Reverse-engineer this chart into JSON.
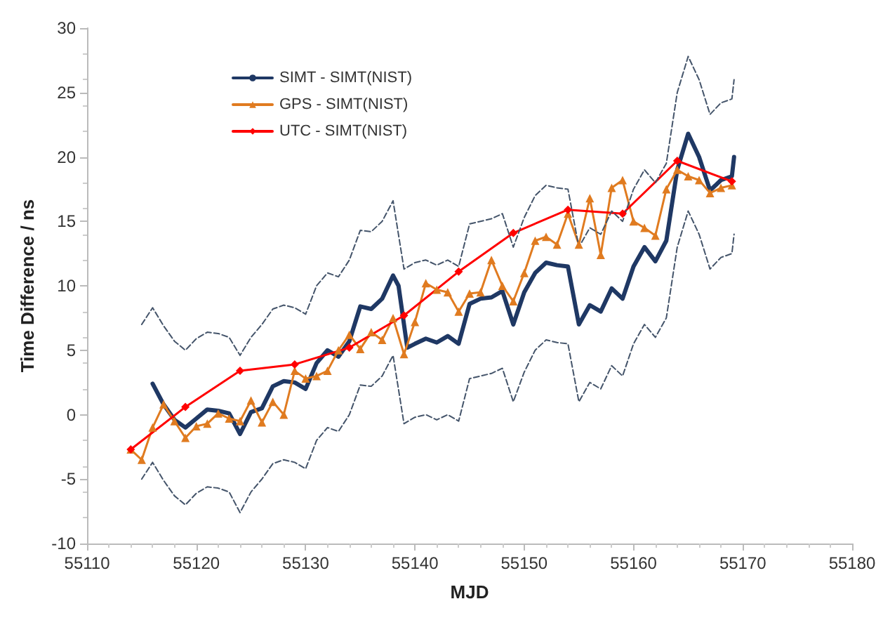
{
  "chart_data": {
    "type": "line",
    "xlabel": "MJD",
    "ylabel": "Time Difference / ns",
    "xlim": [
      55110,
      55180
    ],
    "xticks": [
      55110,
      55120,
      55130,
      55140,
      55150,
      55160,
      55170,
      55180
    ],
    "ylim": [
      -10,
      30
    ],
    "yticks": [
      -10,
      -5,
      0,
      5,
      10,
      15,
      20,
      25,
      30
    ],
    "grid": false,
    "legend": "top left",
    "series": [
      {
        "name": "SIMT - SIMT(NIST)",
        "color": "#1f3864",
        "marker": "none",
        "line_style": "solid",
        "x": [
          55116,
          55117,
          55118,
          55119,
          55120,
          55121,
          55122,
          55123,
          55124,
          55125,
          55126,
          55127,
          55128,
          55129,
          55130,
          55131,
          55132,
          55133,
          55134,
          55135,
          55136,
          55137,
          55138,
          55138.5,
          55139.3,
          55140,
          55141,
          55142,
          55143,
          55144,
          55145,
          55146,
          55147,
          55148,
          55149,
          55150,
          55151,
          55152,
          55153,
          55154,
          55155,
          55156,
          55157,
          55158,
          55159,
          55160,
          55161,
          55162,
          55163,
          55164,
          55165,
          55166,
          55167,
          55168,
          55169,
          55169.2
        ],
        "values": [
          2.4,
          0.8,
          -0.4,
          -1.0,
          -0.3,
          0.4,
          0.3,
          0.1,
          -1.5,
          0.2,
          0.5,
          2.2,
          2.6,
          2.5,
          2.0,
          4.0,
          5.0,
          4.5,
          5.7,
          8.4,
          8.2,
          9.0,
          10.8,
          10.0,
          5.2,
          5.5,
          5.9,
          5.6,
          6.1,
          5.5,
          8.6,
          9.0,
          9.1,
          9.6,
          7.0,
          9.5,
          11.0,
          11.8,
          11.6,
          11.5,
          7.0,
          8.5,
          8.0,
          9.8,
          9.0,
          11.5,
          13.0,
          11.9,
          13.5,
          19.0,
          21.8,
          20.0,
          17.4,
          18.2,
          18.5,
          20.0
        ]
      },
      {
        "name": "GPS - SIMT(NIST)",
        "color": "#e07b20",
        "marker": "triangle",
        "line_style": "solid",
        "x": [
          55114,
          55115,
          55116,
          55117,
          55118,
          55119,
          55120,
          55121,
          55122,
          55123,
          55124,
          55125,
          55126,
          55127,
          55128,
          55129,
          55130,
          55131,
          55132,
          55133,
          55134,
          55135,
          55136,
          55137,
          55138,
          55139,
          55140,
          55141,
          55142,
          55143,
          55144,
          55145,
          55146,
          55147,
          55148,
          55149,
          55150,
          55151,
          55152,
          55153,
          55154,
          55155,
          55156,
          55157,
          55158,
          55159,
          55160,
          55161,
          55162,
          55163,
          55164,
          55165,
          55166,
          55167,
          55168,
          55169
        ],
        "values": [
          -2.7,
          -3.5,
          -1.0,
          0.8,
          -0.5,
          -1.8,
          -0.9,
          -0.7,
          0.1,
          -0.3,
          -0.5,
          1.1,
          -0.6,
          1.0,
          0.0,
          3.4,
          2.8,
          3.0,
          3.4,
          5.0,
          6.2,
          5.1,
          6.4,
          5.8,
          7.5,
          4.7,
          7.2,
          10.2,
          9.7,
          9.5,
          8.0,
          9.4,
          9.5,
          12.0,
          10.0,
          8.8,
          11.0,
          13.5,
          13.8,
          13.2,
          15.6,
          13.2,
          16.8,
          12.4,
          17.6,
          18.2,
          15.0,
          14.5,
          13.9,
          17.5,
          19.0,
          18.5,
          18.2,
          17.2,
          17.6,
          17.8
        ]
      },
      {
        "name": "UTC - SIMT(NIST)",
        "color": "#ff0000",
        "marker": "diamond",
        "line_style": "solid",
        "x": [
          55114,
          55119,
          55124,
          55129,
          55134,
          55139,
          55144,
          55149,
          55154,
          55159,
          55164,
          55169
        ],
        "values": [
          -2.7,
          0.6,
          3.4,
          3.9,
          5.2,
          7.7,
          11.1,
          14.1,
          15.9,
          15.6,
          19.7,
          18.1
        ]
      },
      {
        "color": "#44546a",
        "marker": "none",
        "line_style": "dashed",
        "x": [
          55115,
          55116,
          55117,
          55118,
          55119,
          55120,
          55121,
          55122,
          55123,
          55124,
          55125,
          55126,
          55127,
          55128,
          55129,
          55130,
          55131,
          55132,
          55133,
          55134,
          55135,
          55136,
          55137,
          55138,
          55139,
          55140,
          55141,
          55142,
          55143,
          55144,
          55145,
          55146,
          55147,
          55148,
          55149,
          55150,
          55151,
          55152,
          55153,
          55154,
          55155,
          55156,
          55157,
          55158,
          55159,
          55160,
          55161,
          55162,
          55163,
          55164,
          55165,
          55166,
          55167,
          55168,
          55169,
          55169.2
        ],
        "values": [
          7.0,
          8.3,
          6.9,
          5.7,
          5.0,
          5.9,
          6.4,
          6.3,
          6.0,
          4.6,
          6.0,
          7.0,
          8.2,
          8.5,
          8.3,
          7.8,
          10.0,
          11.0,
          10.7,
          12.0,
          14.3,
          14.2,
          15.0,
          16.6,
          11.3,
          11.8,
          12.0,
          11.6,
          12.0,
          11.5,
          14.8,
          15.0,
          15.2,
          15.6,
          13.0,
          15.3,
          17.0,
          17.8,
          17.6,
          17.5,
          13.0,
          14.5,
          14.0,
          15.8,
          15.0,
          17.5,
          19.0,
          18.0,
          19.5,
          25.0,
          27.8,
          26.0,
          23.3,
          24.2,
          24.5,
          26.0
        ]
      },
      {
        "color": "#44546a",
        "marker": "none",
        "line_style": "dashed",
        "x": [
          55115,
          55116,
          55117,
          55118,
          55119,
          55120,
          55121,
          55122,
          55123,
          55124,
          55125,
          55126,
          55127,
          55128,
          55129,
          55130,
          55131,
          55132,
          55133,
          55134,
          55135,
          55136,
          55137,
          55138,
          55139,
          55140,
          55141,
          55142,
          55143,
          55144,
          55145,
          55146,
          55147,
          55148,
          55149,
          55150,
          55151,
          55152,
          55153,
          55154,
          55155,
          55156,
          55157,
          55158,
          55159,
          55160,
          55161,
          55162,
          55163,
          55164,
          55165,
          55166,
          55167,
          55168,
          55169,
          55169.2
        ],
        "values": [
          -5.0,
          -3.7,
          -5.1,
          -6.3,
          -7.0,
          -6.1,
          -5.6,
          -5.7,
          -6.0,
          -7.6,
          -6.0,
          -5.0,
          -3.8,
          -3.5,
          -3.7,
          -4.2,
          -2.0,
          -1.0,
          -1.3,
          0.0,
          2.3,
          2.2,
          3.0,
          4.6,
          -0.7,
          -0.2,
          0.0,
          -0.4,
          0.0,
          -0.5,
          2.8,
          3.0,
          3.2,
          3.6,
          1.0,
          3.3,
          5.0,
          5.8,
          5.6,
          5.5,
          1.0,
          2.5,
          2.0,
          3.8,
          3.0,
          5.5,
          7.0,
          6.0,
          7.5,
          13.0,
          15.8,
          14.0,
          11.3,
          12.2,
          12.5,
          14.0
        ]
      }
    ]
  }
}
